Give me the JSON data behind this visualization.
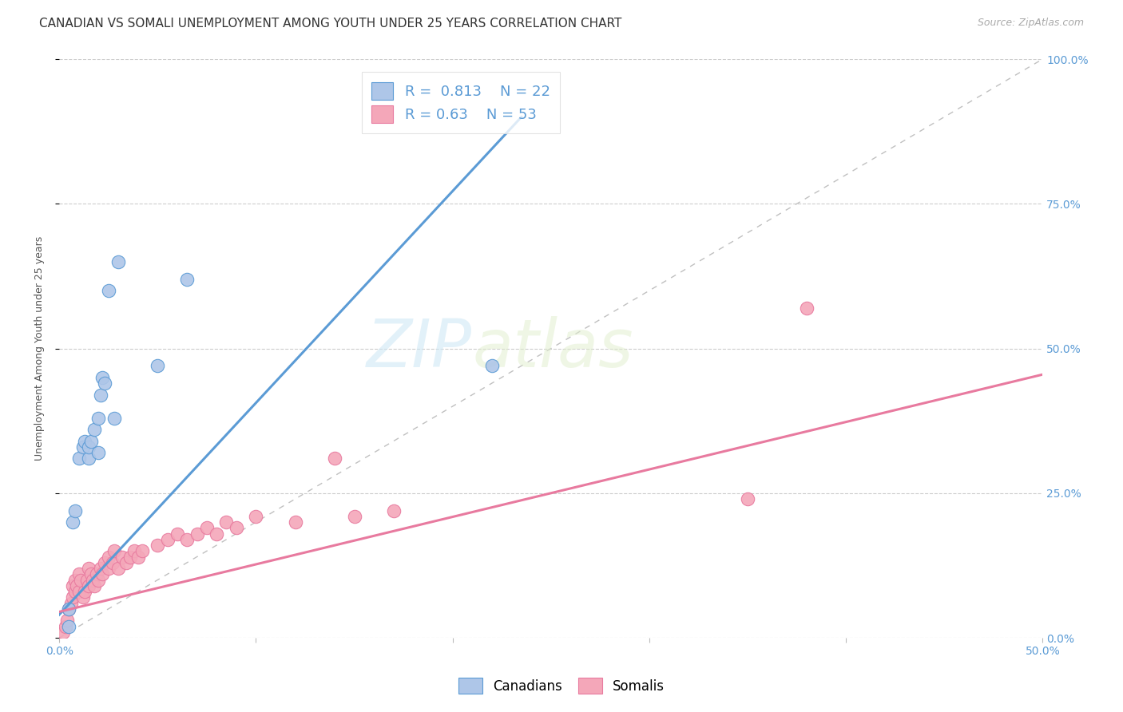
{
  "title": "CANADIAN VS SOMALI UNEMPLOYMENT AMONG YOUTH UNDER 25 YEARS CORRELATION CHART",
  "source": "Source: ZipAtlas.com",
  "ylabel": "Unemployment Among Youth under 25 years",
  "xlim": [
    0.0,
    0.5
  ],
  "ylim": [
    0.0,
    1.0
  ],
  "canadian_R": 0.813,
  "canadian_N": 22,
  "somali_R": 0.63,
  "somali_N": 53,
  "canadian_color": "#aec6e8",
  "somali_color": "#f4a7b9",
  "canadian_line_color": "#5b9bd5",
  "somali_line_color": "#e87a9f",
  "background_color": "#ffffff",
  "canadians_x": [
    0.005,
    0.005,
    0.007,
    0.008,
    0.01,
    0.012,
    0.013,
    0.015,
    0.015,
    0.016,
    0.018,
    0.02,
    0.02,
    0.021,
    0.022,
    0.023,
    0.025,
    0.028,
    0.03,
    0.05,
    0.065,
    0.22
  ],
  "canadians_y": [
    0.02,
    0.05,
    0.2,
    0.22,
    0.31,
    0.33,
    0.34,
    0.31,
    0.33,
    0.34,
    0.36,
    0.32,
    0.38,
    0.42,
    0.45,
    0.44,
    0.6,
    0.38,
    0.65,
    0.47,
    0.62,
    0.47
  ],
  "somalis_x": [
    0.002,
    0.003,
    0.004,
    0.005,
    0.006,
    0.007,
    0.007,
    0.008,
    0.008,
    0.009,
    0.01,
    0.01,
    0.011,
    0.012,
    0.013,
    0.014,
    0.015,
    0.015,
    0.016,
    0.017,
    0.018,
    0.019,
    0.02,
    0.021,
    0.022,
    0.023,
    0.025,
    0.025,
    0.027,
    0.028,
    0.03,
    0.032,
    0.034,
    0.036,
    0.038,
    0.04,
    0.042,
    0.05,
    0.055,
    0.06,
    0.065,
    0.07,
    0.075,
    0.08,
    0.085,
    0.09,
    0.1,
    0.12,
    0.14,
    0.15,
    0.17,
    0.35,
    0.38
  ],
  "somalis_y": [
    0.01,
    0.02,
    0.03,
    0.05,
    0.06,
    0.07,
    0.09,
    0.08,
    0.1,
    0.09,
    0.08,
    0.11,
    0.1,
    0.07,
    0.08,
    0.1,
    0.09,
    0.12,
    0.11,
    0.1,
    0.09,
    0.11,
    0.1,
    0.12,
    0.11,
    0.13,
    0.12,
    0.14,
    0.13,
    0.15,
    0.12,
    0.14,
    0.13,
    0.14,
    0.15,
    0.14,
    0.15,
    0.16,
    0.17,
    0.18,
    0.17,
    0.18,
    0.19,
    0.18,
    0.2,
    0.19,
    0.21,
    0.2,
    0.31,
    0.21,
    0.22,
    0.24,
    0.57
  ],
  "can_line_x0": 0.0,
  "can_line_y0": 0.04,
  "can_line_x1": 0.235,
  "can_line_y1": 0.9,
  "som_line_x0": 0.0,
  "som_line_y0": 0.045,
  "som_line_x1": 0.5,
  "som_line_y1": 0.455,
  "title_fontsize": 11,
  "source_fontsize": 9,
  "axis_label_fontsize": 9,
  "tick_fontsize": 10,
  "legend_fontsize": 13
}
